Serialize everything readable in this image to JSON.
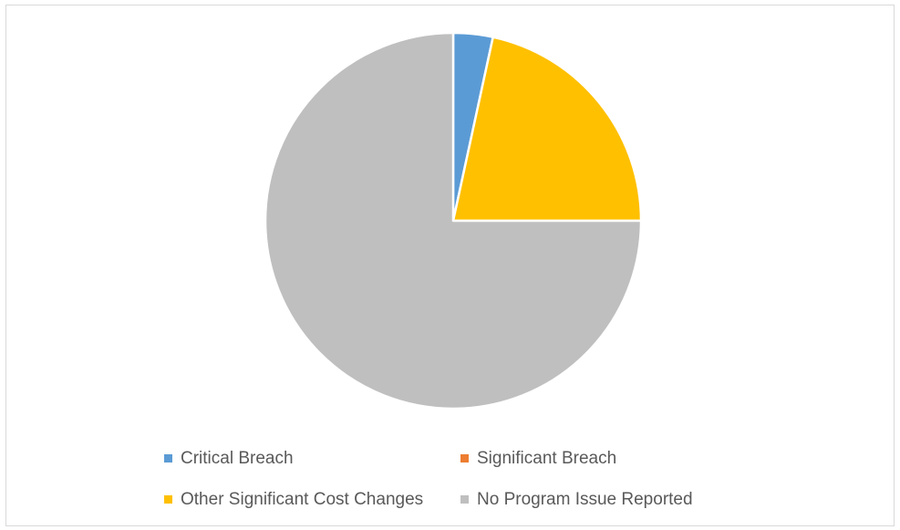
{
  "chart_data": {
    "type": "pie",
    "title": "",
    "legend_position": "bottom",
    "slices": [
      {
        "label": "Critical Breach",
        "value": 3.4,
        "color": "#5b9bd5"
      },
      {
        "label": "Significant Breach",
        "value": 0,
        "color": "#ed7d31"
      },
      {
        "label": "Other Significant Cost Changes",
        "value": 21.6,
        "color": "#ffc000"
      },
      {
        "label": "No Program Issue Reported",
        "value": 75.0,
        "color": "#bfbfbf"
      }
    ]
  }
}
